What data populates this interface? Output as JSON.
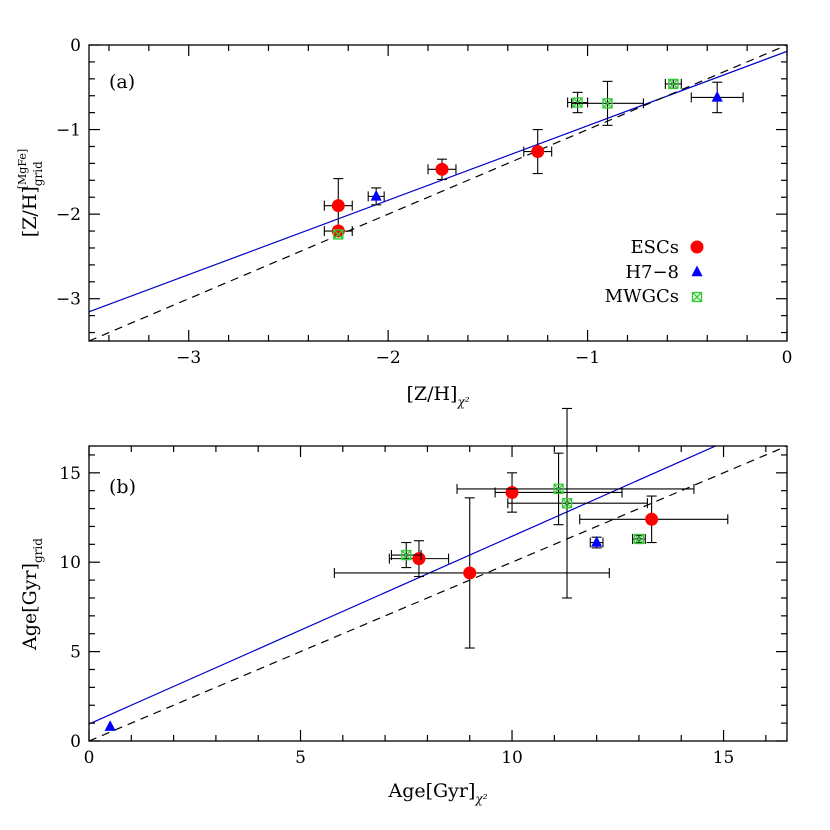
{
  "chart_data": [
    {
      "type": "scatter",
      "panel_label": "(a)",
      "xlabel": "[Z/H]",
      "xlabel_sub": "χ²",
      "ylabel": "[Z/H]",
      "ylabel_sub": "grid",
      "ylabel_sup": "[MgFe]",
      "xlim": [
        -3.5,
        0
      ],
      "ylim": [
        -3.5,
        0
      ],
      "xticks": [
        -3,
        -2,
        -1,
        0
      ],
      "xtick_labels": [
        "−3",
        "−2",
        "−1",
        "0"
      ],
      "yticks": [
        0,
        -1,
        -2,
        -3
      ],
      "ytick_labels": [
        "0",
        "−1",
        "−2",
        "−3"
      ],
      "legend_position": "lower-right",
      "colors": {
        "ESCs": "#ff0000",
        "H7-8": "#0000ff",
        "MWGCs": "#33cc33",
        "fit": "#0000cc",
        "identity": "#000000"
      },
      "series": [
        {
          "name": "ESCs",
          "marker": "circle",
          "points": [
            {
              "x": -2.25,
              "y": -1.9,
              "xerr": 0.07,
              "yerr": [
                0.32,
                0.32
              ]
            },
            {
              "x": -2.25,
              "y": -2.2,
              "xerr": 0.07,
              "yerr": [
                0.05,
                0.05
              ]
            },
            {
              "x": -1.73,
              "y": -1.47,
              "xerr": 0.07,
              "yerr": [
                0.12,
                0.12
              ]
            },
            {
              "x": -1.25,
              "y": -1.26,
              "xerr": 0.07,
              "yerr": [
                0.26,
                0.26
              ]
            }
          ]
        },
        {
          "name": "H7−8",
          "marker": "triangle",
          "points": [
            {
              "x": -2.06,
              "y": -1.79,
              "xerr": 0.04,
              "yerr": [
                0.1,
                0.1
              ]
            },
            {
              "x": -0.35,
              "y": -0.62,
              "xerr": 0.13,
              "yerr": [
                0.18,
                0.18
              ]
            }
          ]
        },
        {
          "name": "MWGCs",
          "marker": "crossed-square",
          "points": [
            {
              "x": -2.25,
              "y": -2.24,
              "xerr": 0.0,
              "yerr": [
                0.0,
                0.0
              ]
            },
            {
              "x": -1.05,
              "y": -0.68,
              "xerr": 0.05,
              "yerr": [
                0.12,
                0.12
              ]
            },
            {
              "x": -0.9,
              "y": -0.69,
              "xerr": 0.18,
              "yerr": [
                0.26,
                0.26
              ]
            },
            {
              "x": -0.57,
              "y": -0.46,
              "xerr": 0.04,
              "yerr": [
                0.05,
                0.05
              ]
            }
          ]
        }
      ],
      "lines": [
        {
          "name": "fit",
          "style": "solid",
          "slope": 0.88,
          "intercept": -0.075
        },
        {
          "name": "identity",
          "style": "dashed",
          "slope": 1.0,
          "intercept": 0.0
        }
      ]
    },
    {
      "type": "scatter",
      "panel_label": "(b)",
      "xlabel": "Age[Gyr]",
      "xlabel_sub": "χ²",
      "ylabel": "Age[Gyr]",
      "ylabel_sub": "grid",
      "xlim": [
        0,
        16.5
      ],
      "ylim": [
        0,
        16.5
      ],
      "xticks": [
        0,
        5,
        10,
        15
      ],
      "xtick_labels": [
        "0",
        "5",
        "10",
        "15"
      ],
      "yticks": [
        0,
        5,
        10,
        15
      ],
      "ytick_labels": [
        "0",
        "5",
        "10",
        "15"
      ],
      "colors": {
        "ESCs": "#ff0000",
        "H7-8": "#0000ff",
        "MWGCs": "#33cc33",
        "fit": "#0000cc",
        "identity": "#000000"
      },
      "series": [
        {
          "name": "ESCs",
          "marker": "circle",
          "points": [
            {
              "x": 7.8,
              "y": 10.2,
              "xerr": 0.7,
              "yerr": [
                1.0,
                1.0
              ]
            },
            {
              "x": 9.0,
              "y": 9.4,
              "xerr": [
                3.2,
                3.3
              ],
              "yerr": [
                4.2,
                4.2
              ]
            },
            {
              "x": 10.0,
              "y": 13.9,
              "xerr": [
                0.4,
                2.6
              ],
              "yerr": [
                1.1,
                1.1
              ]
            },
            {
              "x": 13.3,
              "y": 12.4,
              "xerr": [
                1.7,
                1.8
              ],
              "yerr": [
                1.3,
                1.3
              ]
            }
          ]
        },
        {
          "name": "H7−8",
          "marker": "triangle",
          "points": [
            {
              "x": 0.5,
              "y": 0.8,
              "xerr": 0.0,
              "yerr": [
                0.0,
                0.0
              ]
            },
            {
              "x": 12.0,
              "y": 11.1,
              "xerr": 0.15,
              "yerr": [
                0.3,
                0.3
              ]
            }
          ]
        },
        {
          "name": "MWGCs",
          "marker": "crossed-square",
          "points": [
            {
              "x": 7.5,
              "y": 10.4,
              "xerr": 0.35,
              "yerr": [
                0.7,
                0.7
              ]
            },
            {
              "x": 11.1,
              "y": 14.1,
              "xerr": [
                2.4,
                3.2
              ],
              "yerr": [
                2.0,
                2.0
              ]
            },
            {
              "x": 11.3,
              "y": 13.3,
              "xerr": [
                1.4,
                1.9
              ],
              "yerr": [
                5.3,
                5.3
              ]
            },
            {
              "x": 13.0,
              "y": 11.3,
              "xerr": 0.15,
              "yerr": [
                0.2,
                0.2
              ]
            }
          ]
        }
      ],
      "lines": [
        {
          "name": "fit",
          "style": "solid",
          "slope": 1.05,
          "intercept": 0.95
        },
        {
          "name": "identity",
          "style": "dashed",
          "slope": 1.0,
          "intercept": 0.0
        }
      ]
    }
  ]
}
